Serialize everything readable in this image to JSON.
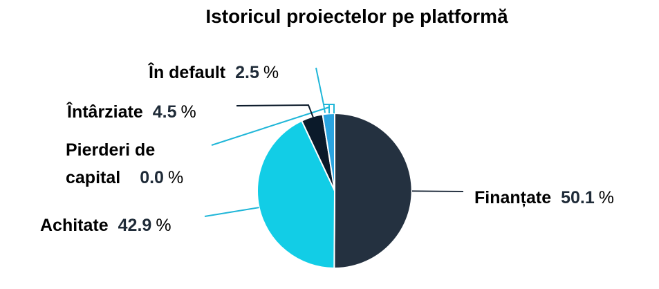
{
  "chart_data": {
    "type": "pie",
    "title": "Istoricul proiectelor pe platformă",
    "slices": [
      {
        "label": "Finanțate",
        "value": 50.1,
        "value_text": "50.1",
        "unit": "%",
        "color": "#243140"
      },
      {
        "label": "Achitate",
        "value": 42.9,
        "value_text": "42.9",
        "unit": "%",
        "color": "#12cde6"
      },
      {
        "label": "Pierderi de capital",
        "label_lines": [
          "Pierderi de",
          "capital"
        ],
        "value": 0.0,
        "value_text": "0.0",
        "unit": "%",
        "color": "#12cde6"
      },
      {
        "label": "Întârziate",
        "value": 4.5,
        "value_text": "4.5",
        "unit": "%",
        "color": "#0b1a2a"
      },
      {
        "label": "În default",
        "value": 2.5,
        "value_text": "2.5",
        "unit": "%",
        "color": "#2aa4e0"
      }
    ],
    "leader_line_color": "#1fb6d8",
    "legend": "none"
  }
}
